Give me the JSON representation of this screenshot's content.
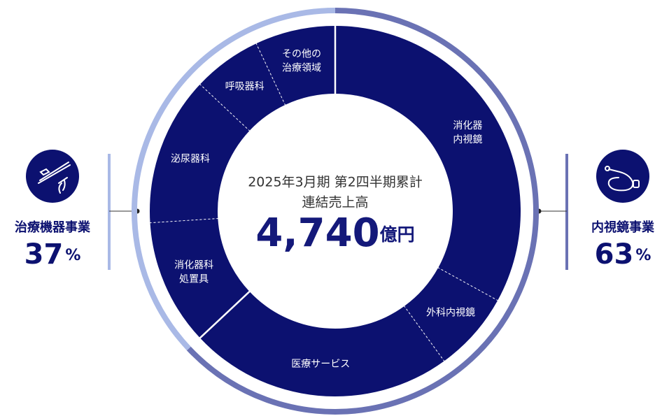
{
  "chart_data": {
    "type": "donut",
    "center_title": [
      "2025年3月期 第2四半期累計",
      "連結売上高"
    ],
    "total": {
      "value": 4740,
      "label": "4,740"
    },
    "total_unit": "億円",
    "unit": "%",
    "color": "#0c1170",
    "groups": [
      {
        "name": "内視鏡事業",
        "value": 63,
        "color": "#6a72b4"
      },
      {
        "name": "治療機器事業",
        "value": 37,
        "color": "#a9b9e6"
      }
    ],
    "categories": [
      [
        "消化器",
        "内視鏡"
      ],
      [
        "外科内視鏡"
      ],
      [
        "医療サービス"
      ],
      [
        "消化器科",
        "処置具"
      ],
      [
        "泌尿器科"
      ],
      [
        "呼吸器科"
      ],
      [
        "その他の",
        "治療領域"
      ]
    ],
    "category_groups": [
      0,
      0,
      0,
      1,
      1,
      1,
      1
    ],
    "values": [
      33,
      7,
      23,
      11,
      13,
      6,
      7
    ]
  }
}
